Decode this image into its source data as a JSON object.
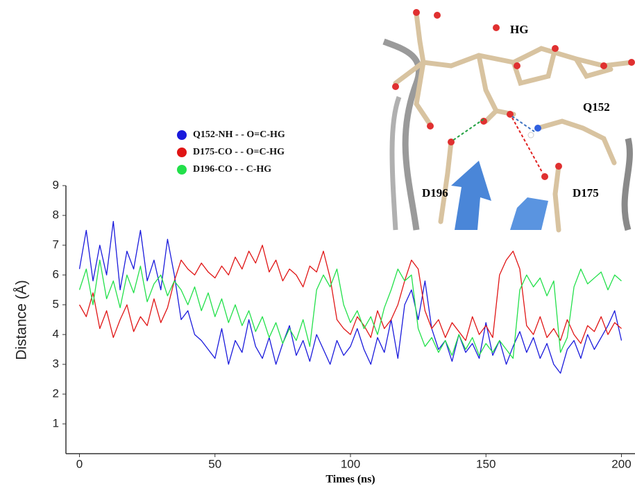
{
  "chart_data": {
    "type": "line",
    "xlabel": "Times (ns)",
    "ylabel": "Distance (Å)",
    "xlim": [
      -5,
      205
    ],
    "xticks": [
      0,
      50,
      100,
      150,
      200
    ],
    "ylim": [
      0,
      9
    ],
    "yticks": [
      1,
      2,
      3,
      4,
      5,
      6,
      7,
      8,
      9
    ],
    "legend": "upper left",
    "annotations": [
      "HG",
      "Q152",
      "D196",
      "D175"
    ],
    "x": [
      0,
      2.5,
      5,
      7.5,
      10,
      12.5,
      15,
      17.5,
      20,
      22.5,
      25,
      27.5,
      30,
      32.5,
      35,
      37.5,
      40,
      42.5,
      45,
      47.5,
      50,
      52.5,
      55,
      57.5,
      60,
      62.5,
      65,
      67.5,
      70,
      72.5,
      75,
      77.5,
      80,
      82.5,
      85,
      87.5,
      90,
      92.5,
      95,
      97.5,
      100,
      102.5,
      105,
      107.5,
      110,
      112.5,
      115,
      117.5,
      120,
      122.5,
      125,
      127.5,
      130,
      132.5,
      135,
      137.5,
      140,
      142.5,
      145,
      147.5,
      150,
      152.5,
      155,
      157.5,
      160,
      162.5,
      165,
      167.5,
      170,
      172.5,
      175,
      177.5,
      180,
      182.5,
      185,
      187.5,
      190,
      192.5,
      195,
      197.5,
      200
    ],
    "series": [
      {
        "name": "Q152-NH - - O=C-HG",
        "color": "#1a1adc",
        "values": [
          6.2,
          7.5,
          5.8,
          7.0,
          6.0,
          7.8,
          5.5,
          6.8,
          6.2,
          7.5,
          5.8,
          6.5,
          5.5,
          7.2,
          6.0,
          4.5,
          4.8,
          4.0,
          3.8,
          3.5,
          3.2,
          4.2,
          3.0,
          3.8,
          3.4,
          4.5,
          3.6,
          3.2,
          3.9,
          3.0,
          3.7,
          4.3,
          3.3,
          3.8,
          3.1,
          4.0,
          3.5,
          3.0,
          3.8,
          3.3,
          3.6,
          4.2,
          3.5,
          3.0,
          3.9,
          3.4,
          4.5,
          3.2,
          5.0,
          5.5,
          4.5,
          5.8,
          4.2,
          3.5,
          3.8,
          3.1,
          4.0,
          3.4,
          3.7,
          3.2,
          4.4,
          3.3,
          3.8,
          3.0,
          3.6,
          4.1,
          3.4,
          3.9,
          3.2,
          3.7,
          3.0,
          2.7,
          3.5,
          3.8,
          3.2,
          4.0,
          3.5,
          3.9,
          4.3,
          4.8,
          3.8
        ]
      },
      {
        "name": "D175-CO - - O=C-HG",
        "color": "#e01515",
        "values": [
          5.0,
          4.6,
          5.4,
          4.2,
          4.8,
          3.9,
          4.5,
          5.0,
          4.1,
          4.6,
          4.3,
          5.2,
          4.4,
          4.9,
          5.8,
          6.5,
          6.2,
          6.0,
          6.4,
          6.1,
          5.9,
          6.3,
          6.0,
          6.6,
          6.2,
          6.8,
          6.4,
          7.0,
          6.1,
          6.5,
          5.8,
          6.2,
          6.0,
          5.6,
          6.3,
          6.1,
          6.8,
          5.9,
          4.5,
          4.2,
          4.0,
          4.6,
          4.3,
          3.9,
          4.8,
          4.2,
          4.5,
          5.0,
          5.8,
          6.5,
          6.2,
          4.8,
          4.2,
          4.5,
          3.9,
          4.4,
          4.1,
          3.8,
          4.6,
          4.0,
          4.3,
          3.9,
          6.0,
          6.5,
          6.8,
          6.2,
          4.3,
          4.0,
          4.6,
          3.9,
          4.2,
          3.8,
          4.5,
          4.0,
          3.7,
          4.3,
          4.1,
          4.6,
          4.0,
          4.4,
          4.2
        ]
      },
      {
        "name": "D196-CO - - C-HG",
        "color": "#22e04a",
        "values": [
          5.5,
          6.2,
          5.0,
          6.5,
          5.2,
          5.8,
          4.9,
          6.0,
          5.4,
          6.3,
          5.1,
          5.7,
          6.0,
          5.3,
          5.8,
          5.5,
          5.0,
          5.6,
          4.8,
          5.4,
          4.6,
          5.2,
          4.4,
          5.0,
          4.3,
          4.8,
          4.1,
          4.6,
          3.9,
          4.4,
          3.7,
          4.2,
          3.8,
          4.5,
          3.6,
          5.5,
          6.0,
          5.6,
          6.2,
          5.0,
          4.4,
          4.8,
          4.2,
          4.6,
          4.0,
          4.9,
          5.5,
          6.2,
          5.8,
          6.0,
          4.2,
          3.6,
          3.9,
          3.4,
          3.8,
          3.3,
          4.0,
          3.5,
          3.9,
          3.3,
          3.7,
          3.4,
          3.8,
          3.5,
          3.2,
          5.5,
          6.0,
          5.6,
          5.9,
          5.3,
          5.8,
          3.4,
          3.9,
          5.6,
          6.2,
          5.7,
          5.9,
          6.1,
          5.5,
          6.0,
          5.8
        ]
      }
    ]
  }
}
